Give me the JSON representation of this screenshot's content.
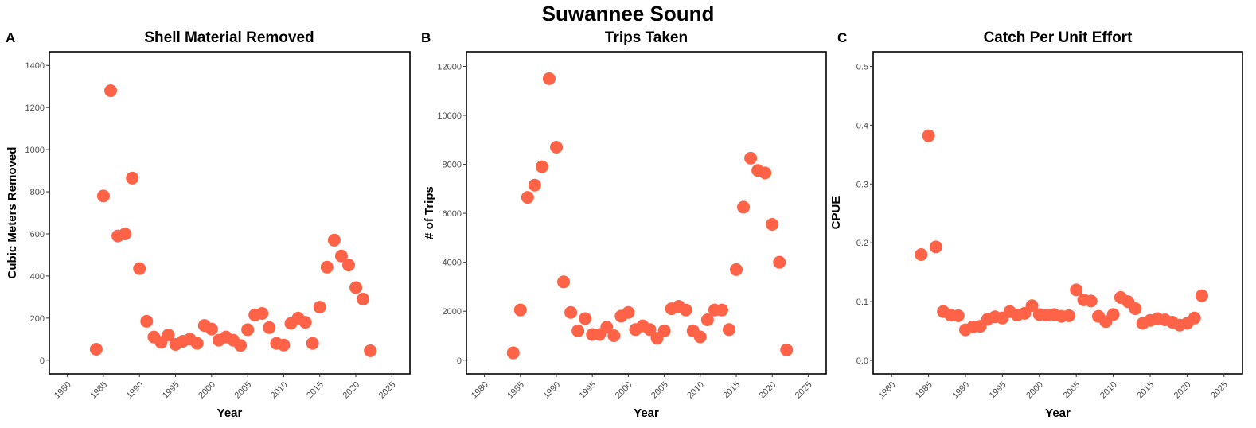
{
  "figure": {
    "title": "Suwannee Sound",
    "point_color": "#FF6347"
  },
  "chart_data": [
    {
      "panel": "A",
      "type": "scatter",
      "title": "Shell Material Removed",
      "xlabel": "Year",
      "ylabel": "Cubic Meters Removed",
      "xlim": [
        1977.5,
        2027.5
      ],
      "ylim": [
        -65,
        1465
      ],
      "xticks": [
        1980,
        1985,
        1990,
        1995,
        2000,
        2005,
        2010,
        2015,
        2020,
        2025
      ],
      "yticks": [
        0,
        200,
        400,
        600,
        800,
        1000,
        1200,
        1400
      ],
      "points": [
        [
          1984,
          52
        ],
        [
          1985,
          780
        ],
        [
          1986,
          1280
        ],
        [
          1987,
          590
        ],
        [
          1988,
          600
        ],
        [
          1989,
          865
        ],
        [
          1990,
          435
        ],
        [
          1991,
          185
        ],
        [
          1992,
          110
        ],
        [
          1993,
          85
        ],
        [
          1994,
          120
        ],
        [
          1995,
          75
        ],
        [
          1996,
          90
        ],
        [
          1997,
          100
        ],
        [
          1998,
          80
        ],
        [
          1999,
          165
        ],
        [
          2000,
          148
        ],
        [
          2001,
          95
        ],
        [
          2002,
          110
        ],
        [
          2003,
          95
        ],
        [
          2004,
          70
        ],
        [
          2005,
          145
        ],
        [
          2006,
          215
        ],
        [
          2007,
          222
        ],
        [
          2008,
          155
        ],
        [
          2009,
          80
        ],
        [
          2010,
          72
        ],
        [
          2011,
          175
        ],
        [
          2012,
          200
        ],
        [
          2013,
          180
        ],
        [
          2014,
          80
        ],
        [
          2015,
          252
        ],
        [
          2016,
          442
        ],
        [
          2017,
          570
        ],
        [
          2018,
          495
        ],
        [
          2019,
          452
        ],
        [
          2020,
          345
        ],
        [
          2021,
          290
        ],
        [
          2022,
          45
        ]
      ]
    },
    {
      "panel": "B",
      "type": "scatter",
      "title": "Trips Taken",
      "xlabel": "Year",
      "ylabel": "# of Trips",
      "xlim": [
        1977.5,
        2027.5
      ],
      "ylim": [
        -560,
        12600
      ],
      "xticks": [
        1980,
        1985,
        1990,
        1995,
        2000,
        2005,
        2010,
        2015,
        2020,
        2025
      ],
      "yticks": [
        0,
        2000,
        4000,
        6000,
        8000,
        10000,
        12000
      ],
      "points": [
        [
          1984,
          300
        ],
        [
          1985,
          2050
        ],
        [
          1986,
          6650
        ],
        [
          1987,
          7150
        ],
        [
          1988,
          7900
        ],
        [
          1989,
          11500
        ],
        [
          1990,
          8700
        ],
        [
          1991,
          3200
        ],
        [
          1992,
          1950
        ],
        [
          1993,
          1200
        ],
        [
          1994,
          1700
        ],
        [
          1995,
          1050
        ],
        [
          1996,
          1050
        ],
        [
          1997,
          1350
        ],
        [
          1998,
          1000
        ],
        [
          1999,
          1800
        ],
        [
          2000,
          1950
        ],
        [
          2001,
          1250
        ],
        [
          2002,
          1400
        ],
        [
          2003,
          1250
        ],
        [
          2004,
          900
        ],
        [
          2005,
          1200
        ],
        [
          2006,
          2100
        ],
        [
          2007,
          2200
        ],
        [
          2008,
          2050
        ],
        [
          2009,
          1200
        ],
        [
          2010,
          950
        ],
        [
          2011,
          1650
        ],
        [
          2012,
          2050
        ],
        [
          2013,
          2050
        ],
        [
          2014,
          1250
        ],
        [
          2015,
          3700
        ],
        [
          2016,
          6250
        ],
        [
          2017,
          8250
        ],
        [
          2018,
          7750
        ],
        [
          2019,
          7650
        ],
        [
          2020,
          5550
        ],
        [
          2021,
          4000
        ],
        [
          2022,
          420
        ]
      ]
    },
    {
      "panel": "C",
      "type": "scatter",
      "title": "Catch Per Unit Effort",
      "xlabel": "Year",
      "ylabel": "CPUE",
      "xlim": [
        1977.5,
        2027.5
      ],
      "ylim": [
        -0.023,
        0.525
      ],
      "xticks": [
        1980,
        1985,
        1990,
        1995,
        2000,
        2005,
        2010,
        2015,
        2020,
        2025
      ],
      "yticks": [
        0.0,
        0.1,
        0.2,
        0.3,
        0.4,
        0.5
      ],
      "points": [
        [
          1984,
          0.18
        ],
        [
          1985,
          0.382
        ],
        [
          1986,
          0.193
        ],
        [
          1987,
          0.083
        ],
        [
          1988,
          0.077
        ],
        [
          1989,
          0.076
        ],
        [
          1990,
          0.052
        ],
        [
          1991,
          0.057
        ],
        [
          1992,
          0.058
        ],
        [
          1993,
          0.07
        ],
        [
          1994,
          0.074
        ],
        [
          1995,
          0.072
        ],
        [
          1996,
          0.083
        ],
        [
          1997,
          0.077
        ],
        [
          1998,
          0.08
        ],
        [
          1999,
          0.093
        ],
        [
          2000,
          0.078
        ],
        [
          2001,
          0.077
        ],
        [
          2002,
          0.078
        ],
        [
          2003,
          0.075
        ],
        [
          2004,
          0.076
        ],
        [
          2005,
          0.12
        ],
        [
          2006,
          0.103
        ],
        [
          2007,
          0.101
        ],
        [
          2008,
          0.075
        ],
        [
          2009,
          0.066
        ],
        [
          2010,
          0.078
        ],
        [
          2011,
          0.107
        ],
        [
          2012,
          0.1
        ],
        [
          2013,
          0.088
        ],
        [
          2014,
          0.063
        ],
        [
          2015,
          0.068
        ],
        [
          2016,
          0.071
        ],
        [
          2017,
          0.069
        ],
        [
          2018,
          0.065
        ],
        [
          2019,
          0.06
        ],
        [
          2020,
          0.063
        ],
        [
          2021,
          0.072
        ],
        [
          2022,
          0.11
        ]
      ]
    }
  ]
}
